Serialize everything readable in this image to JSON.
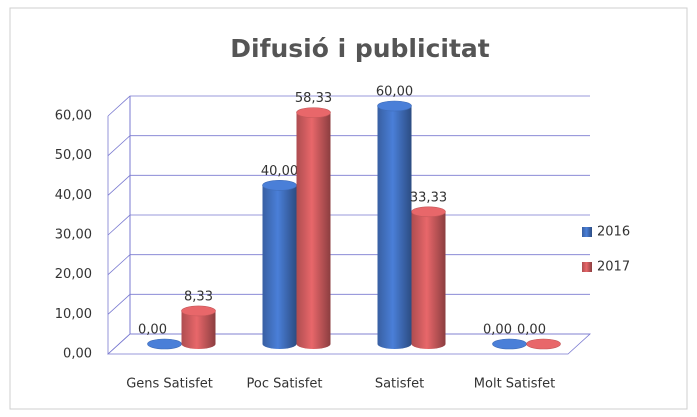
{
  "chart_data": {
    "type": "bar",
    "title": "Difusió i publicitat",
    "categories": [
      "Gens Satisfet",
      "Poc Satisfet",
      "Satisfet",
      "Molt Satisfet"
    ],
    "series": [
      {
        "name": "2016",
        "color": "#4a7fd8",
        "values": [
          0,
          40,
          60,
          0
        ],
        "value_labels": [
          "0,00",
          "40,00",
          "60,00",
          "0,00"
        ]
      },
      {
        "name": "2017",
        "color": "#e8676a",
        "values": [
          8.33,
          58.33,
          33.33,
          0
        ],
        "value_labels": [
          "8,33",
          "58,33",
          "33,33",
          "0,00"
        ]
      }
    ],
    "ylim": [
      0,
      60
    ],
    "yticks": [
      {
        "value": 0,
        "label": "0,00"
      },
      {
        "value": 10,
        "label": "10,00"
      },
      {
        "value": 20,
        "label": "20,00"
      },
      {
        "value": 30,
        "label": "30,00"
      },
      {
        "value": 40,
        "label": "40,00"
      },
      {
        "value": 50,
        "label": "50,00"
      },
      {
        "value": 60,
        "label": "60,00"
      }
    ],
    "grid": true,
    "legend": "right"
  }
}
